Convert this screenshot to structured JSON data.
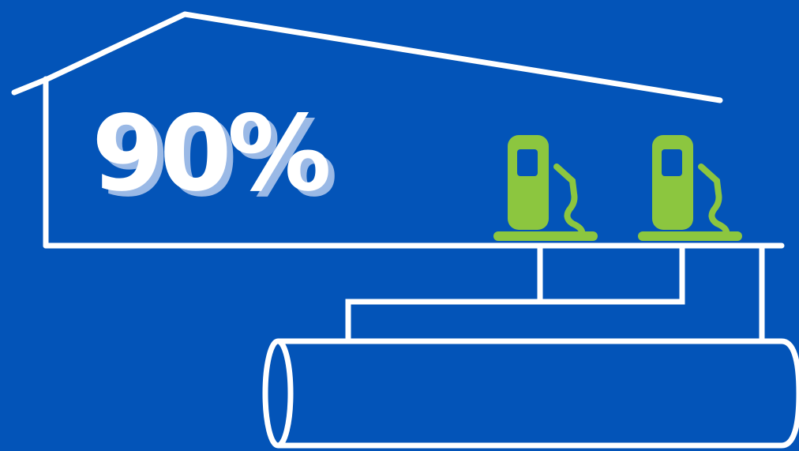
{
  "headline": {
    "value": "90%"
  },
  "colors": {
    "background": "#0354b8",
    "line": "#ffffff",
    "pump": "#8cc63f",
    "headline": "#ffffff",
    "headline_shadow": "#9ab9e6"
  },
  "icons": [
    "house-outline-icon",
    "fuel-pump-icon",
    "fuel-pump-icon",
    "pipe-network-icon",
    "storage-tank-icon"
  ]
}
